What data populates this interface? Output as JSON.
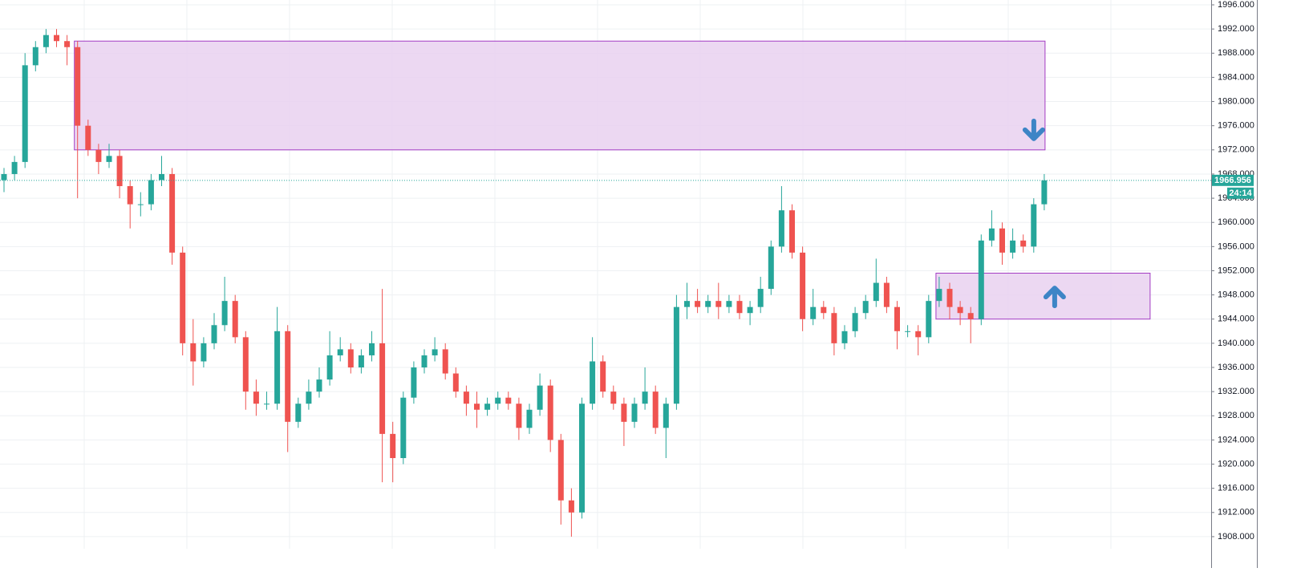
{
  "chart_data": {
    "type": "candlestick",
    "up_color": "#26a69a",
    "down_color": "#ef5350",
    "ylim": [
      1906.0,
      1996.8
    ],
    "yticks": [
      {
        "value": 1996,
        "label": "1996.000"
      },
      {
        "value": 1992,
        "label": "1992.000"
      },
      {
        "value": 1988,
        "label": "1988.000"
      },
      {
        "value": 1984,
        "label": "1984.000"
      },
      {
        "value": 1980,
        "label": "1980.000"
      },
      {
        "value": 1976,
        "label": "1976.000"
      },
      {
        "value": 1972,
        "label": "1972.000"
      },
      {
        "value": 1968,
        "label": "1968.000"
      },
      {
        "value": 1964,
        "label": "1964.000"
      },
      {
        "value": 1960,
        "label": "1960.000"
      },
      {
        "value": 1956,
        "label": "1956.000"
      },
      {
        "value": 1952,
        "label": "1952.000"
      },
      {
        "value": 1948,
        "label": "1948.000"
      },
      {
        "value": 1944,
        "label": "1944.000"
      },
      {
        "value": 1940,
        "label": "1940.000"
      },
      {
        "value": 1936,
        "label": "1936.000"
      },
      {
        "value": 1932,
        "label": "1932.000"
      },
      {
        "value": 1928,
        "label": "1928.000"
      },
      {
        "value": 1924,
        "label": "1924.000"
      },
      {
        "value": 1920,
        "label": "1920.000"
      },
      {
        "value": 1916,
        "label": "1916.000"
      },
      {
        "value": 1912,
        "label": "1912.000"
      },
      {
        "value": 1908,
        "label": "1908.000"
      }
    ],
    "grid": true,
    "open": [
      1967,
      1968,
      1970,
      1986,
      1989,
      1991,
      1990,
      1989,
      1976,
      1972,
      1970,
      1971,
      1966,
      1963,
      1963,
      1967,
      1968,
      1955,
      1940,
      1937,
      1940,
      1943,
      1947,
      1941,
      1932,
      1930,
      1930,
      1942,
      1927,
      1930,
      1932,
      1934,
      1938,
      1939,
      1936,
      1938,
      1940,
      1925,
      1921,
      1931,
      1936,
      1938,
      1939,
      1935,
      1932,
      1930,
      1929,
      1930,
      1931,
      1930,
      1926,
      1929,
      1933,
      1924,
      1914,
      1912,
      1930,
      1937,
      1932,
      1930,
      1927,
      1930,
      1932,
      1926,
      1930,
      1946,
      1947,
      1946,
      1947,
      1946,
      1947,
      1945,
      1946,
      1949,
      1956,
      1962,
      1955,
      1944,
      1946,
      1945,
      1940,
      1942,
      1945,
      1947,
      1950,
      1946,
      1942,
      1942,
      1941,
      1947,
      1949,
      1946,
      1945,
      1944,
      1957,
      1959,
      1955,
      1957,
      1956,
      1963
    ],
    "high": [
      1969,
      1971,
      1988,
      1990,
      1992,
      1992,
      1991,
      1990,
      1977,
      1973,
      1973,
      1972,
      1967,
      1965,
      1968,
      1971,
      1969,
      1956,
      1944,
      1941,
      1945,
      1951,
      1948,
      1942,
      1934,
      1932,
      1946,
      1943,
      1931,
      1934,
      1936,
      1942,
      1941,
      1940,
      1939,
      1942,
      1949,
      1927,
      1932,
      1937,
      1939,
      1941,
      1940,
      1936,
      1933,
      1932,
      1931,
      1932,
      1932,
      1931,
      1930,
      1935,
      1934,
      1925,
      1916,
      1931,
      1941,
      1938,
      1933,
      1931,
      1931,
      1936,
      1933,
      1931,
      1948,
      1950,
      1949,
      1948,
      1950,
      1948,
      1948,
      1947,
      1951,
      1957,
      1966,
      1963,
      1956,
      1949,
      1947,
      1946,
      1943,
      1946,
      1948,
      1954,
      1951,
      1947,
      1943,
      1943,
      1948,
      1951,
      1950,
      1947,
      1946,
      1958,
      1962,
      1960,
      1959,
      1958,
      1964,
      1968
    ],
    "low": [
      1965,
      1967,
      1969,
      1985,
      1988,
      1989,
      1986,
      1964,
      1971,
      1968,
      1969,
      1964,
      1959,
      1961,
      1962,
      1966,
      1953,
      1938,
      1933,
      1936,
      1939,
      1942,
      1940,
      1929,
      1928,
      1929,
      1929,
      1922,
      1926,
      1929,
      1931,
      1933,
      1937,
      1935,
      1935,
      1937,
      1917,
      1917,
      1920,
      1930,
      1935,
      1937,
      1934,
      1931,
      1928,
      1926,
      1928,
      1929,
      1929,
      1924,
      1925,
      1928,
      1922,
      1910,
      1908,
      1911,
      1929,
      1931,
      1929,
      1923,
      1926,
      1929,
      1925,
      1921,
      1929,
      1944,
      1945,
      1945,
      1944,
      1945,
      1944,
      1943,
      1945,
      1948,
      1955,
      1954,
      1942,
      1943,
      1944,
      1938,
      1939,
      1941,
      1944,
      1946,
      1945,
      1939,
      1941,
      1938,
      1940,
      1946,
      1944,
      1943,
      1940,
      1943,
      1956,
      1953,
      1954,
      1955,
      1955,
      1962
    ],
    "close": [
      1968,
      1970,
      1986,
      1989,
      1991,
      1990,
      1989,
      1976,
      1972,
      1970,
      1971,
      1966,
      1963,
      1963,
      1967,
      1968,
      1955,
      1940,
      1937,
      1940,
      1943,
      1947,
      1941,
      1932,
      1930,
      1930,
      1942,
      1927,
      1930,
      1932,
      1934,
      1938,
      1939,
      1936,
      1938,
      1940,
      1925,
      1921,
      1931,
      1936,
      1938,
      1939,
      1935,
      1932,
      1930,
      1929,
      1930,
      1931,
      1930,
      1926,
      1929,
      1933,
      1924,
      1914,
      1912,
      1930,
      1937,
      1932,
      1930,
      1927,
      1930,
      1932,
      1926,
      1930,
      1946,
      1947,
      1946,
      1947,
      1946,
      1947,
      1945,
      1946,
      1949,
      1956,
      1962,
      1955,
      1944,
      1946,
      1945,
      1940,
      1942,
      1945,
      1947,
      1950,
      1946,
      1942,
      1942,
      1941,
      1947,
      1949,
      1946,
      1945,
      1944,
      1957,
      1959,
      1955,
      1957,
      1956,
      1963,
      1966.956
    ],
    "zones": [
      {
        "top": 1990,
        "bottom": 1972,
        "start": 7,
        "end": 99,
        "direction": "down"
      },
      {
        "top": 1951.6,
        "bottom": 1944,
        "start": 89,
        "end": 109,
        "direction": "up"
      }
    ],
    "zone_color": "#e9d1f0",
    "zone_border": "#a33cc4",
    "arrow_color": "#3d85c6",
    "countdown": "24:14"
  }
}
